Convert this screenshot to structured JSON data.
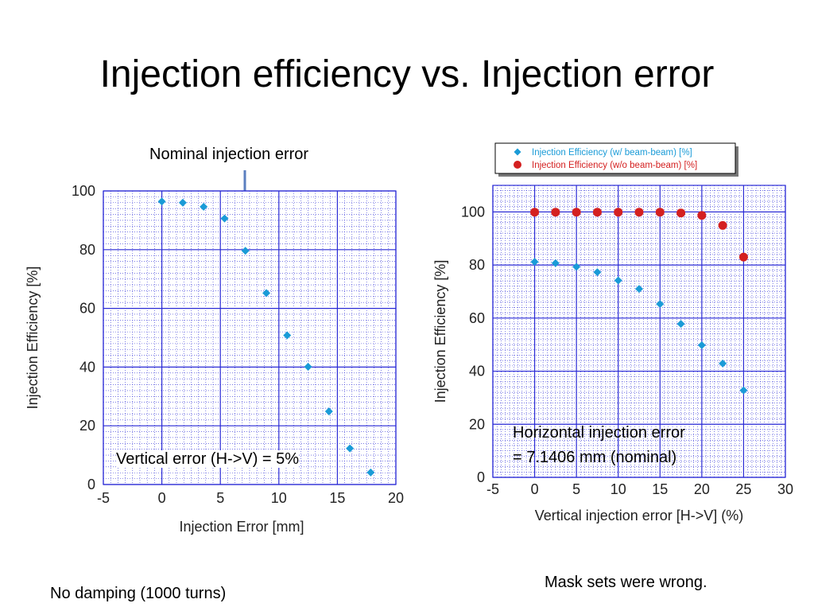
{
  "slide": {
    "title": "Injection efficiency vs. Injection error",
    "left_annotation": "Nominal injection error",
    "left_note": "Vertical error (H->V) = 5%",
    "right_note_line1": "Horizontal injection error",
    "right_note_line2": "= 7.1406 mm (nominal)",
    "footer_left": "No damping (1000 turns)",
    "footer_right": "Mask sets were wrong."
  },
  "chart_data": [
    {
      "type": "scatter",
      "title": "",
      "xlabel": "Injection Error [mm]",
      "ylabel": "Injection Efficiency [%]",
      "xlim": [
        -5,
        20
      ],
      "ylim": [
        0,
        100
      ],
      "xticks": [
        "-5",
        "0",
        "5",
        "10",
        "15",
        "20"
      ],
      "yticks": [
        "0",
        "20",
        "40",
        "60",
        "80",
        "100"
      ],
      "grid": true,
      "series": [
        {
          "color": "#1a9bd7",
          "marker": "diamond",
          "x": [
            0,
            1.79,
            3.57,
            5.36,
            7.14,
            8.93,
            10.71,
            12.5,
            14.28,
            16.07,
            17.85
          ],
          "y": [
            96.4,
            96.0,
            94.6,
            90.6,
            79.6,
            65.2,
            50.8,
            40.1,
            24.9,
            12.3,
            4.1
          ]
        }
      ]
    },
    {
      "type": "scatter",
      "title": "",
      "xlabel": "Vertical injection error [H->V] (%)",
      "ylabel": "Injection Efficiency [%]",
      "xlim": [
        -5,
        30
      ],
      "ylim": [
        0,
        110
      ],
      "xticks": [
        "-5",
        "0",
        "5",
        "10",
        "15",
        "20",
        "25",
        "30"
      ],
      "yticks": [
        "0",
        "20",
        "40",
        "60",
        "80",
        "100"
      ],
      "grid": true,
      "legend": "top",
      "series": [
        {
          "name": "Injection Efficiency (w/ beam-beam) [%]",
          "color": "#1a9bd7",
          "marker": "diamond",
          "x": [
            0,
            2.5,
            5,
            7.5,
            10,
            12.5,
            15,
            17.5,
            20,
            22.5,
            25
          ],
          "y": [
            81.2,
            80.7,
            79.3,
            77.3,
            74.2,
            71.0,
            65.3,
            57.8,
            49.8,
            42.9,
            32.8
          ]
        },
        {
          "name": "Injection Efficiency (w/o beam-beam) [%]",
          "color": "#d42020",
          "marker": "circle",
          "x": [
            0,
            2.5,
            5,
            7.5,
            10,
            12.5,
            15,
            17.5,
            20,
            22.5,
            25
          ],
          "y": [
            99.9,
            99.9,
            99.9,
            99.9,
            99.9,
            99.9,
            99.9,
            99.6,
            98.7,
            94.9,
            83.0
          ]
        }
      ]
    }
  ]
}
